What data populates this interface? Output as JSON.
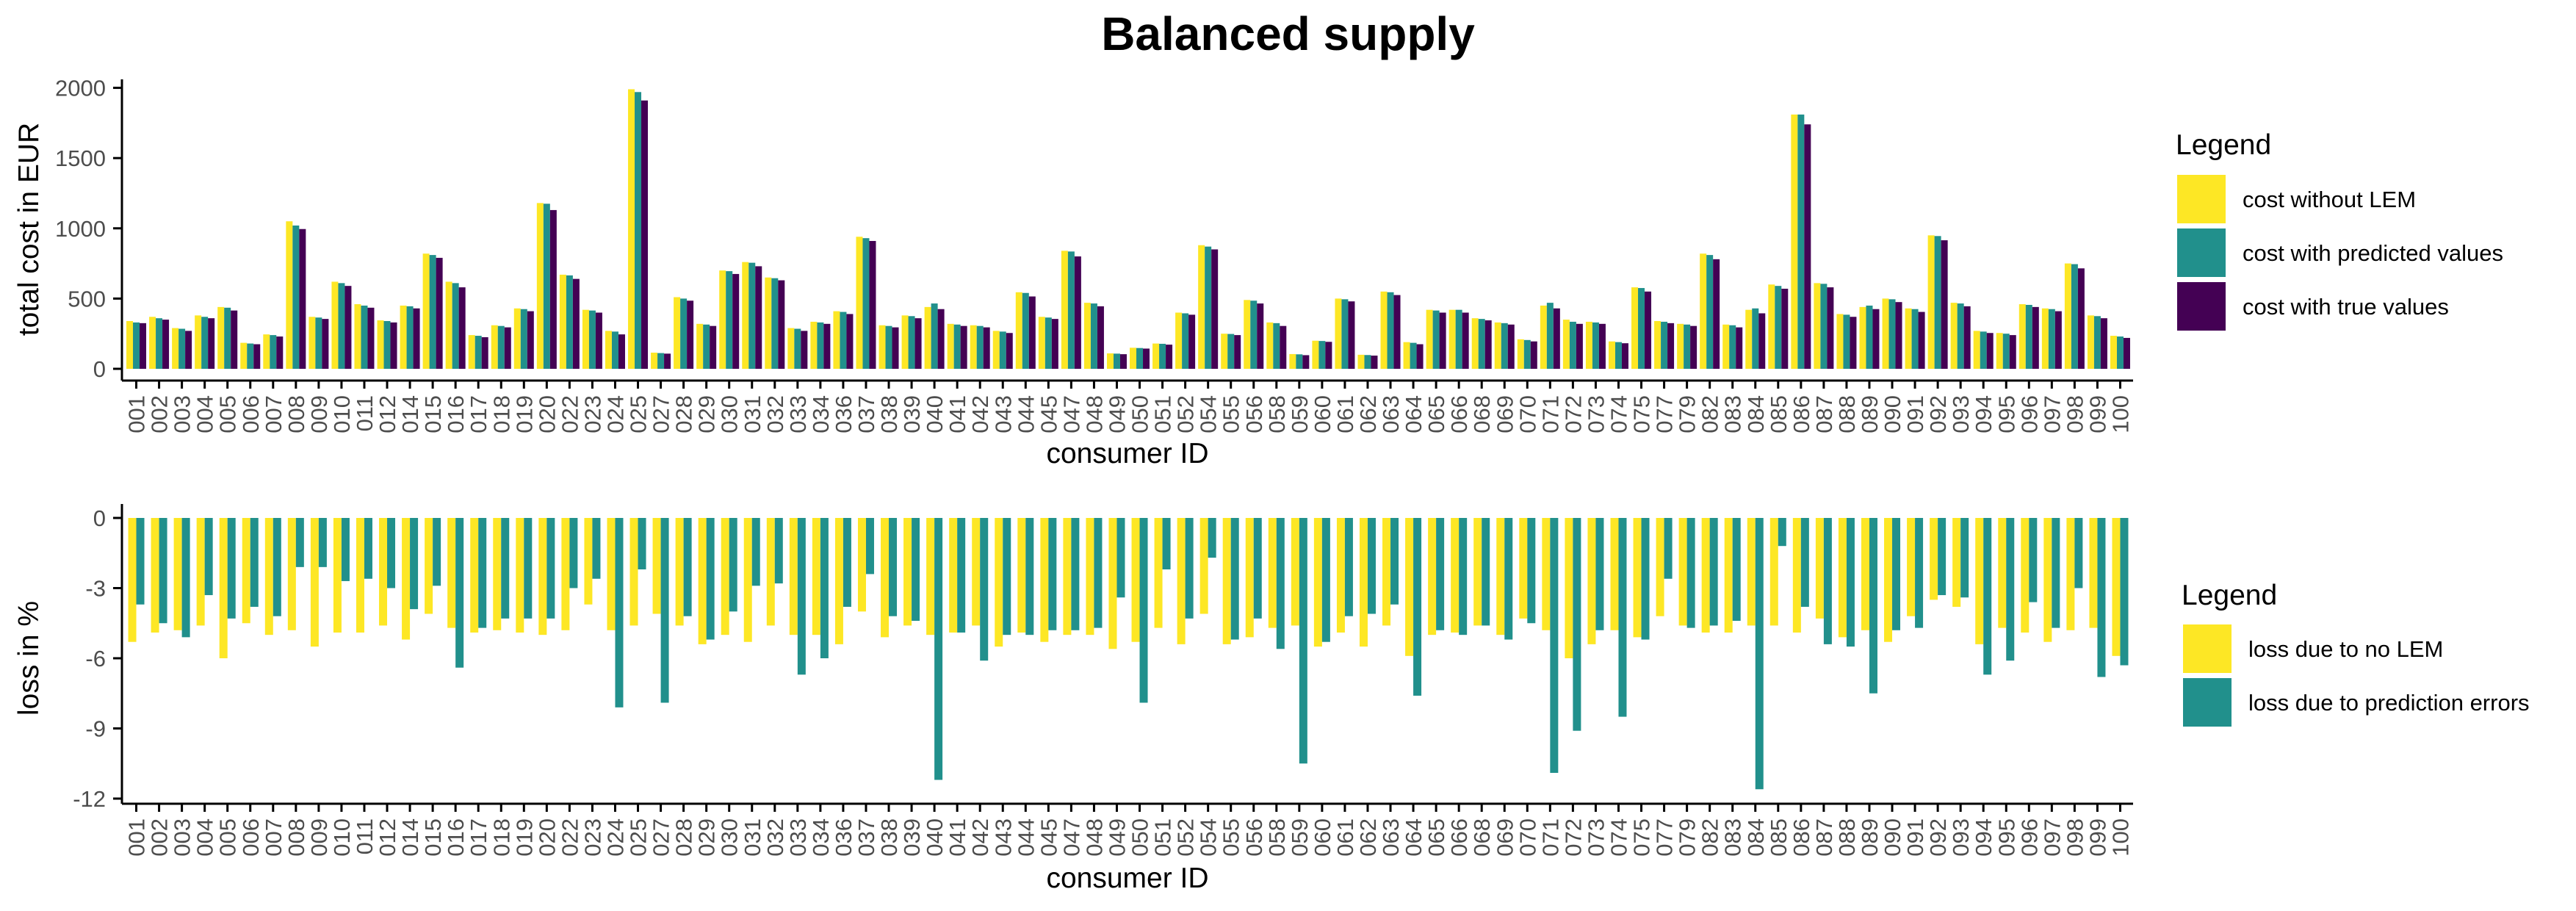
{
  "chart_data": [
    {
      "type": "bar",
      "title": "Balanced supply",
      "xlabel": "consumer ID",
      "ylabel": "total cost in EUR",
      "ylim": [
        0,
        2050
      ],
      "yticks": [
        0,
        500,
        1000,
        1500,
        2000
      ],
      "grid": false,
      "legend_title": "Legend",
      "legend_position": "right",
      "categories": [
        "001",
        "002",
        "003",
        "004",
        "005",
        "006",
        "007",
        "008",
        "009",
        "010",
        "011",
        "012",
        "014",
        "015",
        "016",
        "017",
        "018",
        "019",
        "020",
        "022",
        "023",
        "024",
        "025",
        "027",
        "028",
        "029",
        "030",
        "031",
        "032",
        "033",
        "034",
        "036",
        "037",
        "038",
        "039",
        "040",
        "041",
        "042",
        "043",
        "044",
        "045",
        "047",
        "048",
        "049",
        "050",
        "051",
        "052",
        "054",
        "055",
        "056",
        "058",
        "059",
        "060",
        "061",
        "062",
        "063",
        "064",
        "065",
        "066",
        "068",
        "069",
        "070",
        "071",
        "072",
        "073",
        "074",
        "075",
        "077",
        "079",
        "082",
        "083",
        "084",
        "085",
        "086",
        "087",
        "088",
        "089",
        "090",
        "091",
        "092",
        "093",
        "094",
        "095",
        "096",
        "097",
        "098",
        "099",
        "100"
      ],
      "series": [
        {
          "name": "cost without LEM",
          "color": "#FDE725",
          "values": [
            340,
            370,
            290,
            380,
            440,
            185,
            245,
            1050,
            370,
            620,
            460,
            345,
            450,
            820,
            620,
            240,
            310,
            430,
            1180,
            670,
            420,
            270,
            1990,
            115,
            510,
            320,
            700,
            760,
            650,
            290,
            335,
            410,
            940,
            310,
            380,
            440,
            320,
            310,
            270,
            545,
            370,
            840,
            470,
            110,
            150,
            180,
            400,
            880,
            250,
            490,
            330,
            105,
            200,
            500,
            100,
            550,
            190,
            420,
            420,
            360,
            330,
            210,
            450,
            350,
            335,
            195,
            580,
            340,
            320,
            820,
            315,
            420,
            600,
            1810,
            610,
            390,
            440,
            500,
            430,
            950,
            470,
            270,
            255,
            460,
            430,
            750,
            380,
            235
          ]
        },
        {
          "name": "cost with predicted values",
          "color": "#21908C",
          "values": [
            330,
            360,
            285,
            370,
            435,
            180,
            240,
            1020,
            365,
            610,
            450,
            340,
            445,
            810,
            610,
            235,
            305,
            425,
            1175,
            665,
            415,
            265,
            1970,
            112,
            500,
            315,
            695,
            755,
            645,
            285,
            330,
            405,
            930,
            305,
            375,
            465,
            315,
            305,
            265,
            540,
            365,
            835,
            465,
            108,
            148,
            178,
            395,
            870,
            248,
            485,
            325,
            103,
            198,
            495,
            98,
            545,
            185,
            415,
            420,
            355,
            325,
            205,
            470,
            335,
            330,
            190,
            575,
            335,
            315,
            810,
            310,
            430,
            590,
            1810,
            605,
            385,
            450,
            495,
            425,
            945,
            465,
            265,
            250,
            455,
            425,
            745,
            375,
            230
          ]
        },
        {
          "name": "cost with true values",
          "color": "#440154",
          "values": [
            325,
            350,
            270,
            360,
            415,
            175,
            230,
            995,
            355,
            590,
            435,
            330,
            430,
            790,
            580,
            225,
            295,
            410,
            1130,
            640,
            400,
            245,
            1910,
            108,
            485,
            305,
            675,
            730,
            630,
            270,
            320,
            390,
            910,
            295,
            360,
            425,
            305,
            295,
            255,
            515,
            355,
            800,
            445,
            104,
            144,
            172,
            385,
            850,
            240,
            465,
            305,
            97,
            192,
            480,
            94,
            525,
            175,
            400,
            400,
            345,
            315,
            195,
            430,
            320,
            320,
            182,
            550,
            325,
            305,
            780,
            295,
            395,
            570,
            1740,
            580,
            370,
            425,
            475,
            405,
            915,
            445,
            255,
            240,
            440,
            410,
            715,
            360,
            220
          ]
        }
      ]
    },
    {
      "type": "bar",
      "xlabel": "consumer ID",
      "ylabel": "loss in %",
      "ylim": [
        -12,
        0
      ],
      "yticks": [
        0,
        -3,
        -6,
        -9,
        -12
      ],
      "grid": false,
      "legend_title": "Legend",
      "legend_position": "right",
      "categories": [
        "001",
        "002",
        "003",
        "004",
        "005",
        "006",
        "007",
        "008",
        "009",
        "010",
        "011",
        "012",
        "014",
        "015",
        "016",
        "017",
        "018",
        "019",
        "020",
        "022",
        "023",
        "024",
        "025",
        "027",
        "028",
        "029",
        "030",
        "031",
        "032",
        "033",
        "034",
        "036",
        "037",
        "038",
        "039",
        "040",
        "041",
        "042",
        "043",
        "044",
        "045",
        "047",
        "048",
        "049",
        "050",
        "051",
        "052",
        "054",
        "055",
        "056",
        "058",
        "059",
        "060",
        "061",
        "062",
        "063",
        "064",
        "065",
        "066",
        "068",
        "069",
        "070",
        "071",
        "072",
        "073",
        "074",
        "075",
        "077",
        "079",
        "082",
        "083",
        "084",
        "085",
        "086",
        "087",
        "088",
        "089",
        "090",
        "091",
        "092",
        "093",
        "094",
        "095",
        "096",
        "097",
        "098",
        "099",
        "100"
      ],
      "series": [
        {
          "name": "loss due to no LEM",
          "color": "#FDE725",
          "values": [
            -5.3,
            -4.9,
            -4.8,
            -4.6,
            -6.0,
            -4.5,
            -5.0,
            -4.8,
            -5.5,
            -4.9,
            -4.9,
            -4.6,
            -5.2,
            -4.1,
            -4.7,
            -4.9,
            -4.8,
            -4.9,
            -5.0,
            -4.8,
            -3.7,
            -4.8,
            -4.6,
            -4.1,
            -4.6,
            -5.4,
            -5.0,
            -5.3,
            -4.6,
            -5.0,
            -5.0,
            -5.4,
            -4.0,
            -5.1,
            -4.6,
            -5.0,
            -4.9,
            -4.6,
            -5.5,
            -4.9,
            -5.3,
            -5.0,
            -5.0,
            -5.6,
            -5.3,
            -4.7,
            -5.4,
            -4.1,
            -5.4,
            -5.1,
            -4.7,
            -4.6,
            -5.5,
            -4.9,
            -5.5,
            -4.6,
            -5.9,
            -5.0,
            -4.9,
            -4.6,
            -5.0,
            -4.3,
            -4.8,
            -6.0,
            -5.4,
            -4.8,
            -5.1,
            -4.2,
            -4.6,
            -4.9,
            -4.9,
            -4.6,
            -4.6,
            -4.9,
            -4.3,
            -5.1,
            -4.8,
            -5.3,
            -4.2,
            -3.5,
            -3.8,
            -5.4,
            -4.7,
            -4.9,
            -5.3,
            -4.8,
            -4.7,
            -5.9
          ]
        },
        {
          "name": "loss due to prediction errors",
          "color": "#21908C",
          "values": [
            -3.7,
            -4.5,
            -5.1,
            -3.3,
            -4.3,
            -3.8,
            -4.2,
            -2.1,
            -2.1,
            -2.7,
            -2.6,
            -3.0,
            -3.9,
            -2.9,
            -6.4,
            -4.7,
            -4.3,
            -4.3,
            -4.3,
            -3.0,
            -2.6,
            -8.1,
            -2.2,
            -7.9,
            -4.2,
            -5.2,
            -4.0,
            -2.9,
            -2.8,
            -6.7,
            -6.0,
            -3.8,
            -2.4,
            -4.2,
            -4.4,
            -11.2,
            -4.9,
            -6.1,
            -5.0,
            -5.0,
            -4.8,
            -4.8,
            -4.7,
            -3.4,
            -7.9,
            -2.2,
            -4.3,
            -1.7,
            -5.2,
            -4.3,
            -5.6,
            -10.5,
            -5.3,
            -4.2,
            -4.1,
            -3.7,
            -7.6,
            -4.8,
            -5.0,
            -4.6,
            -5.2,
            -4.5,
            -10.9,
            -9.1,
            -4.8,
            -8.5,
            -5.2,
            -2.6,
            -4.7,
            -4.6,
            -4.4,
            -11.6,
            -1.2,
            -3.8,
            -5.4,
            -5.5,
            -7.5,
            -4.8,
            -4.7,
            -3.3,
            -3.4,
            -6.7,
            -6.1,
            -3.6,
            -4.7,
            -3.0,
            -6.8,
            -6.3
          ]
        }
      ]
    }
  ]
}
